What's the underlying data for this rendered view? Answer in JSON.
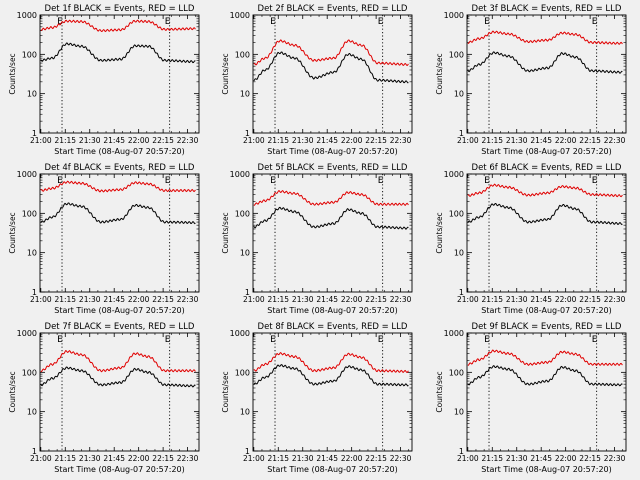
{
  "figure": {
    "background": "#f0f0f0",
    "colors": {
      "events": "#000000",
      "lld": "#e00000",
      "axes": "#000000"
    }
  },
  "chart_data": [
    {
      "type": "line",
      "title": "Det 1f BLACK = Events, RED = LLD",
      "xlabel": "Start Time (08-Aug-07 20:57:20)",
      "ylabel": "Counts/sec",
      "yscale": "log",
      "ylim": [
        1,
        1000
      ],
      "x_ticks": [
        "21:00",
        "21:15",
        "21:30",
        "21:45",
        "22:00",
        "22:15",
        "22:30"
      ],
      "y_ticks": [
        "1",
        "10",
        "100",
        "1000"
      ],
      "markers": {
        "labels": [
          "E",
          "E"
        ],
        "times": [
          "21:13",
          "22:19"
        ]
      },
      "series": [
        {
          "x": [
            "21:00",
            "21:07",
            "21:16",
            "21:25",
            "21:37",
            "21:49",
            "21:58",
            "22:06",
            "22:16",
            "22:35"
          ],
          "y": [
            430,
            480,
            700,
            680,
            400,
            420,
            700,
            680,
            430,
            450
          ]
        },
        {
          "x": [
            "21:00",
            "21:07",
            "21:16",
            "21:25",
            "21:37",
            "21:49",
            "21:58",
            "22:06",
            "22:16",
            "22:35"
          ],
          "y": [
            70,
            80,
            185,
            160,
            70,
            75,
            165,
            160,
            70,
            65
          ]
        }
      ]
    },
    {
      "type": "line",
      "title": "Det 2f BLACK = Events, RED = LLD",
      "xlabel": "Start Time (08-Aug-07 20:57:20)",
      "ylabel": "Counts/sec",
      "yscale": "log",
      "ylim": [
        1,
        1000
      ],
      "x_ticks": [
        "21:00",
        "21:15",
        "21:30",
        "21:45",
        "22:00",
        "22:15",
        "22:30"
      ],
      "y_ticks": [
        "1",
        "10",
        "100",
        "1000"
      ],
      "markers": {
        "labels": [
          "E",
          "E"
        ],
        "times": [
          "21:13",
          "22:19"
        ]
      },
      "series": [
        {
          "x": [
            "21:00",
            "21:07",
            "21:16",
            "21:25",
            "21:37",
            "21:49",
            "21:58",
            "22:06",
            "22:16",
            "22:35"
          ],
          "y": [
            55,
            80,
            220,
            170,
            70,
            80,
            220,
            170,
            60,
            55
          ]
        },
        {
          "x": [
            "21:00",
            "21:07",
            "21:16",
            "21:25",
            "21:37",
            "21:49",
            "21:58",
            "22:06",
            "22:16",
            "22:35"
          ],
          "y": [
            22,
            40,
            110,
            80,
            25,
            35,
            100,
            75,
            22,
            20
          ]
        }
      ]
    },
    {
      "type": "line",
      "title": "Det 3f BLACK = Events, RED = LLD",
      "xlabel": "Start Time (08-Aug-07 20:57:20)",
      "ylabel": "Counts/sec",
      "yscale": "log",
      "ylim": [
        1,
        1000
      ],
      "x_ticks": [
        "21:00",
        "21:15",
        "21:30",
        "21:45",
        "22:00",
        "22:15",
        "22:30"
      ],
      "y_ticks": [
        "1",
        "10",
        "100",
        "1000"
      ],
      "markers": {
        "labels": [
          "E",
          "E"
        ],
        "times": [
          "21:13",
          "22:19"
        ]
      },
      "series": [
        {
          "x": [
            "21:00",
            "21:07",
            "21:16",
            "21:25",
            "21:37",
            "21:49",
            "21:58",
            "22:06",
            "22:16",
            "22:35"
          ],
          "y": [
            200,
            250,
            370,
            330,
            210,
            230,
            350,
            320,
            200,
            190
          ]
        },
        {
          "x": [
            "21:00",
            "21:07",
            "21:16",
            "21:25",
            "21:37",
            "21:49",
            "21:58",
            "22:06",
            "22:16",
            "22:35"
          ],
          "y": [
            38,
            55,
            110,
            90,
            38,
            45,
            105,
            85,
            38,
            35
          ]
        }
      ]
    },
    {
      "type": "line",
      "title": "Det 4f BLACK = Events, RED = LLD",
      "xlabel": "Start Time (08-Aug-07 20:57:20)",
      "ylabel": "Counts/sec",
      "yscale": "log",
      "ylim": [
        1,
        1000
      ],
      "x_ticks": [
        "21:00",
        "21:15",
        "21:30",
        "21:45",
        "22:00",
        "22:15",
        "22:30"
      ],
      "y_ticks": [
        "1",
        "10",
        "100",
        "1000"
      ],
      "markers": {
        "labels": [
          "E",
          "E"
        ],
        "times": [
          "21:13",
          "22:19"
        ]
      },
      "series": [
        {
          "x": [
            "21:00",
            "21:07",
            "21:16",
            "21:25",
            "21:37",
            "21:49",
            "21:58",
            "22:06",
            "22:16",
            "22:35"
          ],
          "y": [
            380,
            430,
            620,
            580,
            370,
            400,
            600,
            560,
            380,
            380
          ]
        },
        {
          "x": [
            "21:00",
            "21:07",
            "21:16",
            "21:25",
            "21:37",
            "21:49",
            "21:58",
            "22:06",
            "22:16",
            "22:35"
          ],
          "y": [
            60,
            80,
            175,
            150,
            60,
            70,
            160,
            140,
            60,
            58
          ]
        }
      ]
    },
    {
      "type": "line",
      "title": "Det 5f BLACK = Events, RED = LLD",
      "xlabel": "Start Time (08-Aug-07 20:57:20)",
      "ylabel": "Counts/sec",
      "yscale": "log",
      "ylim": [
        1,
        1000
      ],
      "x_ticks": [
        "21:00",
        "21:15",
        "21:30",
        "21:45",
        "22:00",
        "22:15",
        "22:30"
      ],
      "y_ticks": [
        "1",
        "10",
        "100",
        "1000"
      ],
      "markers": {
        "labels": [
          "E",
          "E"
        ],
        "times": [
          "21:13",
          "22:19"
        ]
      },
      "series": [
        {
          "x": [
            "21:00",
            "21:07",
            "21:16",
            "21:25",
            "21:37",
            "21:49",
            "21:58",
            "22:06",
            "22:16",
            "22:35"
          ],
          "y": [
            170,
            210,
            360,
            320,
            170,
            190,
            340,
            300,
            170,
            170
          ]
        },
        {
          "x": [
            "21:00",
            "21:07",
            "21:16",
            "21:25",
            "21:37",
            "21:49",
            "21:58",
            "22:06",
            "22:16",
            "22:35"
          ],
          "y": [
            45,
            65,
            135,
            110,
            45,
            55,
            125,
            100,
            45,
            42
          ]
        }
      ]
    },
    {
      "type": "line",
      "title": "Det 6f BLACK = Events, RED = LLD",
      "xlabel": "Start Time (08-Aug-07 20:57:20)",
      "ylabel": "Counts/sec",
      "yscale": "log",
      "ylim": [
        1,
        1000
      ],
      "x_ticks": [
        "21:00",
        "21:15",
        "21:30",
        "21:45",
        "22:00",
        "22:15",
        "22:30"
      ],
      "y_ticks": [
        "1",
        "10",
        "100",
        "1000"
      ],
      "markers": {
        "labels": [
          "E",
          "E"
        ],
        "times": [
          "21:13",
          "22:19"
        ]
      },
      "series": [
        {
          "x": [
            "21:00",
            "21:07",
            "21:16",
            "21:25",
            "21:37",
            "21:49",
            "21:58",
            "22:06",
            "22:16",
            "22:35"
          ],
          "y": [
            280,
            330,
            520,
            460,
            290,
            330,
            480,
            440,
            300,
            280
          ]
        },
        {
          "x": [
            "21:00",
            "21:07",
            "21:16",
            "21:25",
            "21:37",
            "21:49",
            "21:58",
            "22:06",
            "22:16",
            "22:35"
          ],
          "y": [
            60,
            80,
            170,
            140,
            60,
            70,
            160,
            130,
            60,
            55
          ]
        }
      ]
    },
    {
      "type": "line",
      "title": "Det 7f BLACK = Events, RED = LLD",
      "xlabel": "Start Time (08-Aug-07 20:57:20)",
      "ylabel": "Counts/sec",
      "yscale": "log",
      "ylim": [
        1,
        1000
      ],
      "x_ticks": [
        "21:00",
        "21:15",
        "21:30",
        "21:45",
        "22:00",
        "22:15",
        "22:30"
      ],
      "y_ticks": [
        "1",
        "10",
        "100",
        "1000"
      ],
      "markers": {
        "labels": [
          "E",
          "E"
        ],
        "times": [
          "21:13",
          "22:19"
        ]
      },
      "series": [
        {
          "x": [
            "21:00",
            "21:07",
            "21:16",
            "21:25",
            "21:37",
            "21:49",
            "21:58",
            "22:06",
            "22:16",
            "22:35"
          ],
          "y": [
            110,
            160,
            340,
            280,
            110,
            130,
            300,
            250,
            110,
            110
          ]
        },
        {
          "x": [
            "21:00",
            "21:07",
            "21:16",
            "21:25",
            "21:37",
            "21:49",
            "21:58",
            "22:06",
            "22:16",
            "22:35"
          ],
          "y": [
            48,
            70,
            130,
            110,
            48,
            55,
            120,
            100,
            48,
            45
          ]
        }
      ]
    },
    {
      "type": "line",
      "title": "Det 8f BLACK = Events, RED = LLD",
      "xlabel": "Start Time (08-Aug-07 20:57:20)",
      "ylabel": "Counts/sec",
      "yscale": "log",
      "ylim": [
        1,
        1000
      ],
      "x_ticks": [
        "21:00",
        "21:15",
        "21:30",
        "21:45",
        "22:00",
        "22:15",
        "22:30"
      ],
      "y_ticks": [
        "1",
        "10",
        "100",
        "1000"
      ],
      "markers": {
        "labels": [
          "E",
          "E"
        ],
        "times": [
          "21:13",
          "22:19"
        ]
      },
      "series": [
        {
          "x": [
            "21:00",
            "21:07",
            "21:16",
            "21:25",
            "21:37",
            "21:49",
            "21:58",
            "22:06",
            "22:16",
            "22:35"
          ],
          "y": [
            110,
            160,
            300,
            250,
            110,
            130,
            290,
            240,
            110,
            105
          ]
        },
        {
          "x": [
            "21:00",
            "21:07",
            "21:16",
            "21:25",
            "21:37",
            "21:49",
            "21:58",
            "22:06",
            "22:16",
            "22:35"
          ],
          "y": [
            50,
            75,
            150,
            125,
            50,
            60,
            140,
            115,
            50,
            48
          ]
        }
      ]
    },
    {
      "type": "line",
      "title": "Det 9f BLACK = Events, RED = LLD",
      "xlabel": "Start Time (08-Aug-07 20:57:20)",
      "ylabel": "Counts/sec",
      "yscale": "log",
      "ylim": [
        1,
        1000
      ],
      "x_ticks": [
        "21:00",
        "21:15",
        "21:30",
        "21:45",
        "22:00",
        "22:15",
        "22:30"
      ],
      "y_ticks": [
        "1",
        "10",
        "100",
        "1000"
      ],
      "markers": {
        "labels": [
          "E",
          "E"
        ],
        "times": [
          "21:13",
          "22:19"
        ]
      },
      "series": [
        {
          "x": [
            "21:00",
            "21:07",
            "21:16",
            "21:25",
            "21:37",
            "21:49",
            "21:58",
            "22:06",
            "22:16",
            "22:35"
          ],
          "y": [
            160,
            210,
            350,
            300,
            160,
            180,
            330,
            290,
            160,
            160
          ]
        },
        {
          "x": [
            "21:00",
            "21:07",
            "21:16",
            "21:25",
            "21:37",
            "21:49",
            "21:58",
            "22:06",
            "22:16",
            "22:35"
          ],
          "y": [
            50,
            75,
            140,
            120,
            50,
            60,
            135,
            110,
            50,
            48
          ]
        }
      ]
    }
  ]
}
